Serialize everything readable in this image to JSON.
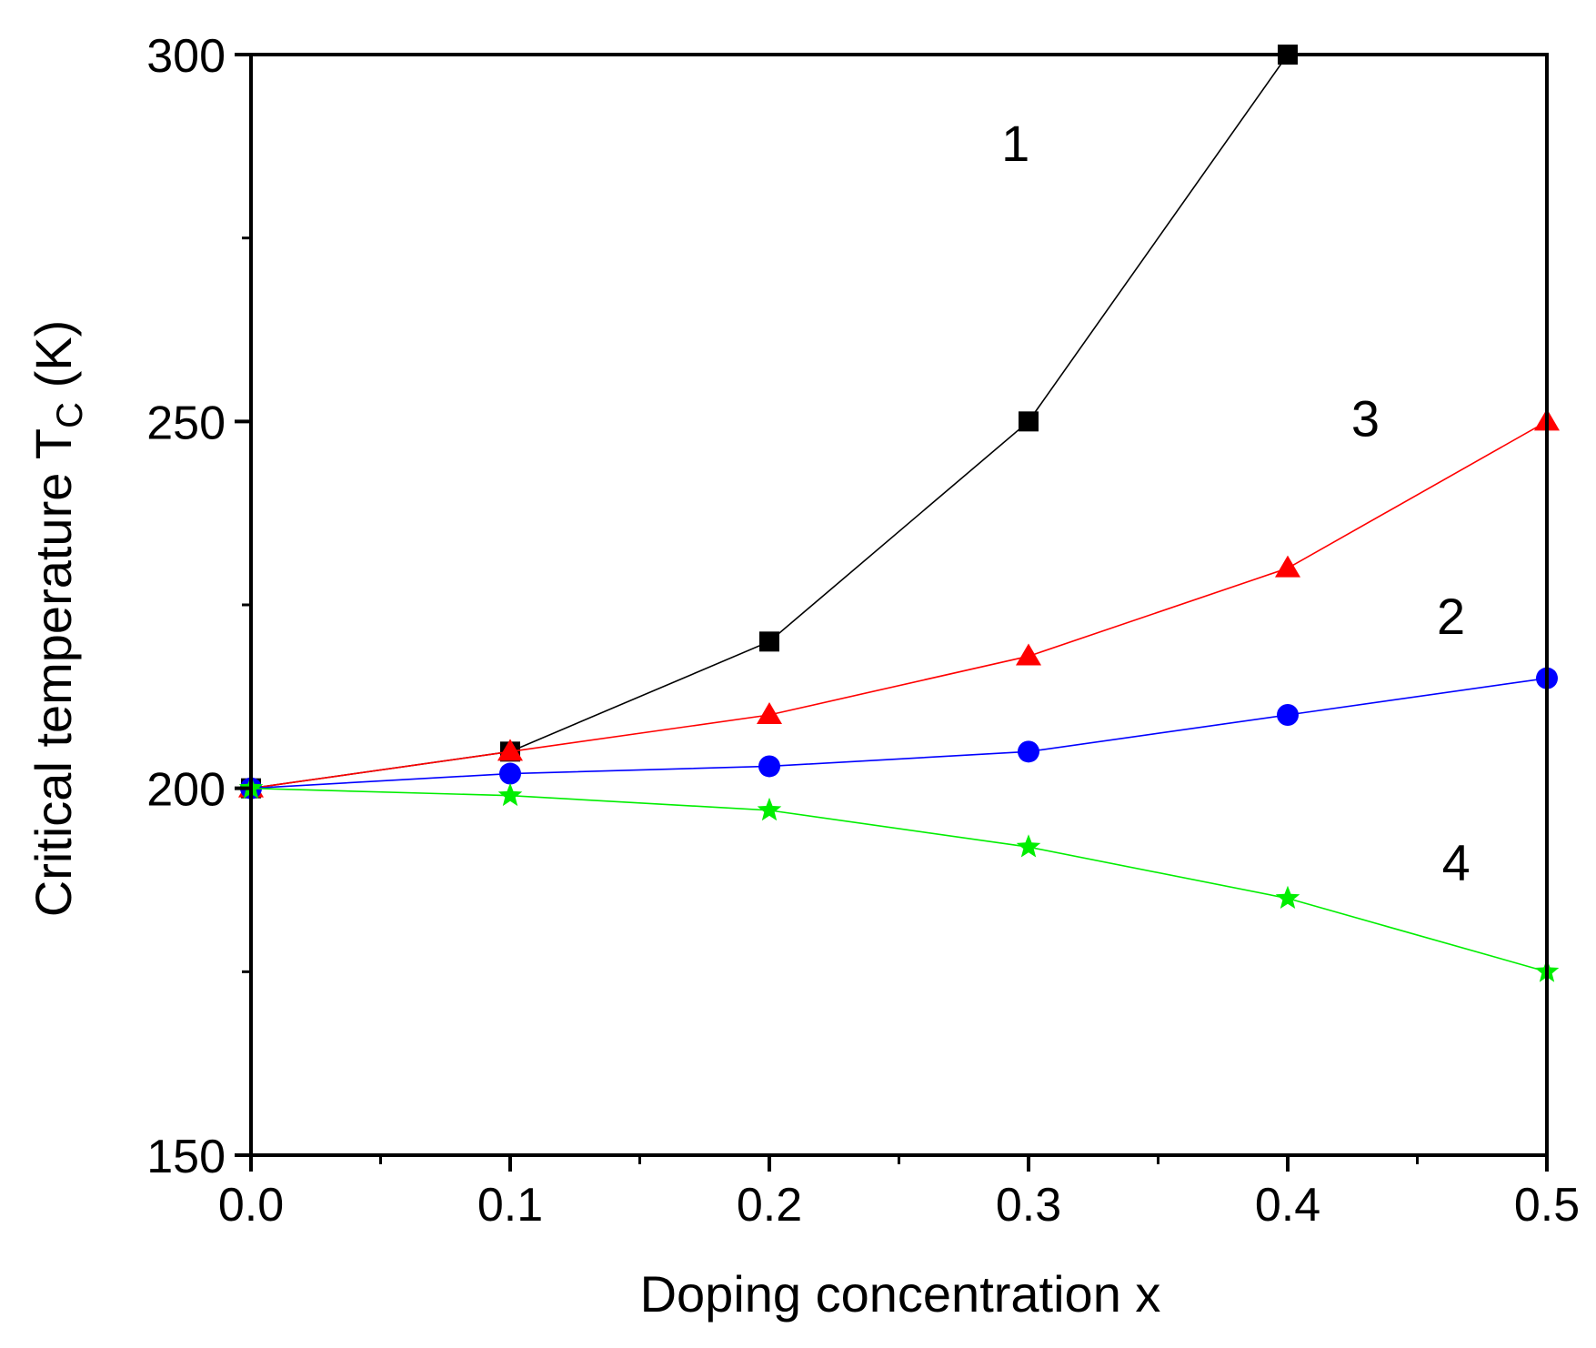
{
  "chart_data": {
    "type": "line",
    "xlabel": "Doping concentration x",
    "ylabel_main": "Critical temperature T",
    "ylabel_sub": "C",
    "ylabel_unit": " (K)",
    "xlim": [
      0.0,
      0.5
    ],
    "ylim": [
      150,
      300
    ],
    "x_ticks": [
      "0.0",
      "0.1",
      "0.2",
      "0.3",
      "0.4",
      "0.5"
    ],
    "y_ticks": [
      "150",
      "200",
      "250",
      "300"
    ],
    "x_minor_step": 0.05,
    "y_minor_step": 25,
    "grid": false,
    "x": [
      0.0,
      0.1,
      0.2,
      0.3,
      0.4,
      0.5
    ],
    "series": [
      {
        "label": "1",
        "color": "#000000",
        "marker": "square",
        "values": [
          200,
          205,
          220,
          250,
          300,
          null
        ]
      },
      {
        "label": "3",
        "color": "#ff0000",
        "marker": "triangle",
        "values": [
          200,
          205,
          210,
          218,
          230,
          250
        ]
      },
      {
        "label": "2",
        "color": "#0000ff",
        "marker": "circle",
        "values": [
          200,
          202,
          203,
          205,
          210,
          215
        ]
      },
      {
        "label": "4",
        "color": "#00ee00",
        "marker": "star",
        "values": [
          200,
          199,
          197,
          192,
          185,
          175
        ]
      }
    ],
    "annotations": [
      {
        "text": "1",
        "x": 0.295,
        "y": 288
      },
      {
        "text": "3",
        "x": 0.43,
        "y": 250.5
      },
      {
        "text": "2",
        "x": 0.463,
        "y": 223.5
      },
      {
        "text": "4",
        "x": 0.465,
        "y": 190
      }
    ]
  }
}
